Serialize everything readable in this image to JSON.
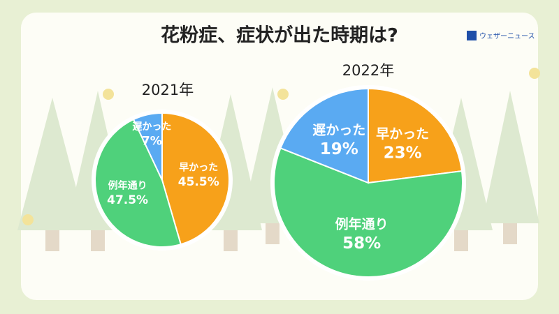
{
  "title": "花粉症、症状が出た時期は?",
  "brand": "ウェザーニュース",
  "chart_data": [
    {
      "type": "pie",
      "title": "2021年",
      "categories": [
        "早かった",
        "例年通り",
        "遅かった"
      ],
      "values": [
        45.5,
        47.5,
        7
      ],
      "value_labels": [
        "45.5%",
        "47.5%",
        "7%"
      ],
      "colors": [
        "#f7a11a",
        "#4fd17b",
        "#5aaaf2"
      ]
    },
    {
      "type": "pie",
      "title": "2022年",
      "categories": [
        "早かった",
        "例年通り",
        "遅かった"
      ],
      "values": [
        23,
        58,
        19
      ],
      "value_labels": [
        "23%",
        "58%",
        "19%"
      ],
      "colors": [
        "#f7a11a",
        "#4fd17b",
        "#5aaaf2"
      ]
    }
  ]
}
